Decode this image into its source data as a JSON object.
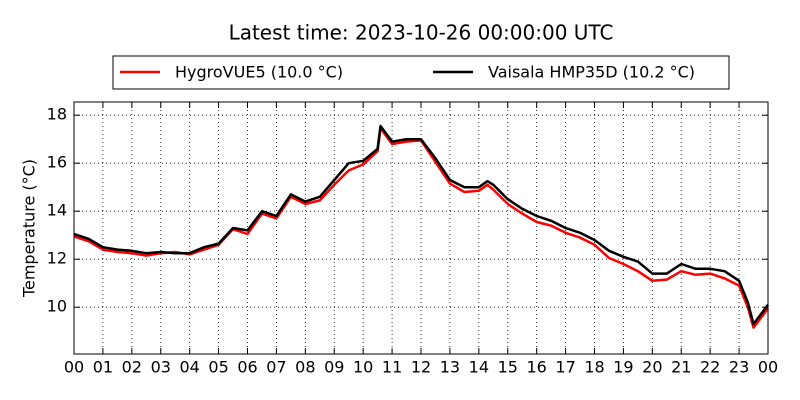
{
  "chart_data": {
    "type": "line",
    "title": "Latest time: 2023-10-26 00:00:00 UTC",
    "y_label": "Temperature (°C)",
    "x": [
      0,
      0.5,
      1,
      1.5,
      2,
      2.5,
      3,
      3.5,
      4,
      4.5,
      5,
      5.5,
      6,
      6.5,
      7,
      7.5,
      8,
      8.5,
      9,
      9.5,
      10,
      10.5,
      10.6,
      11,
      11.5,
      12,
      12.5,
      13,
      13.5,
      14,
      14.3,
      14.5,
      15,
      15.5,
      16,
      16.5,
      17,
      17.5,
      18,
      18.5,
      19,
      19.5,
      20,
      20.5,
      21,
      21.5,
      22,
      22.5,
      23,
      23.3,
      23.5,
      24
    ],
    "series": [
      {
        "name": "HygroVUE5 (10.0 °C)",
        "color": "#ff0000",
        "values": [
          12.95,
          12.75,
          12.4,
          12.3,
          12.25,
          12.15,
          12.25,
          12.3,
          12.2,
          12.4,
          12.6,
          13.25,
          13.05,
          13.9,
          13.7,
          14.6,
          14.3,
          14.45,
          15.1,
          15.7,
          15.95,
          16.5,
          17.45,
          16.8,
          16.9,
          16.95,
          16.05,
          15.15,
          14.8,
          14.85,
          15.1,
          14.9,
          14.3,
          13.9,
          13.55,
          13.4,
          13.1,
          12.9,
          12.6,
          12.05,
          11.8,
          11.5,
          11.1,
          11.15,
          11.5,
          11.35,
          11.4,
          11.2,
          10.9,
          10.0,
          9.15,
          9.95
        ]
      },
      {
        "name": "Vaisala HMP35D (10.2 °C)",
        "color": "#000000",
        "values": [
          13.05,
          12.85,
          12.5,
          12.4,
          12.35,
          12.25,
          12.3,
          12.25,
          12.25,
          12.5,
          12.65,
          13.3,
          13.2,
          14.0,
          13.8,
          14.7,
          14.4,
          14.6,
          15.3,
          16.0,
          16.1,
          16.6,
          17.55,
          16.9,
          17.0,
          17.0,
          16.2,
          15.3,
          15.0,
          15.0,
          15.25,
          15.1,
          14.5,
          14.1,
          13.8,
          13.6,
          13.3,
          13.1,
          12.8,
          12.35,
          12.1,
          11.9,
          11.4,
          11.4,
          11.8,
          11.6,
          11.6,
          11.5,
          11.1,
          10.2,
          9.3,
          10.1
        ]
      }
    ],
    "xlim": [
      0,
      24
    ],
    "xticks": [
      {
        "value": 0,
        "label": "00"
      },
      {
        "value": 1,
        "label": "01"
      },
      {
        "value": 2,
        "label": "02"
      },
      {
        "value": 3,
        "label": "03"
      },
      {
        "value": 4,
        "label": "04"
      },
      {
        "value": 5,
        "label": "05"
      },
      {
        "value": 6,
        "label": "06"
      },
      {
        "value": 7,
        "label": "07"
      },
      {
        "value": 8,
        "label": "08"
      },
      {
        "value": 9,
        "label": "09"
      },
      {
        "value": 10,
        "label": "10"
      },
      {
        "value": 11,
        "label": "11"
      },
      {
        "value": 12,
        "label": "12"
      },
      {
        "value": 13,
        "label": "13"
      },
      {
        "value": 14,
        "label": "14"
      },
      {
        "value": 15,
        "label": "15"
      },
      {
        "value": 16,
        "label": "16"
      },
      {
        "value": 17,
        "label": "17"
      },
      {
        "value": 18,
        "label": "18"
      },
      {
        "value": 19,
        "label": "19"
      },
      {
        "value": 20,
        "label": "20"
      },
      {
        "value": 21,
        "label": "21"
      },
      {
        "value": 22,
        "label": "22"
      },
      {
        "value": 23,
        "label": "23"
      },
      {
        "value": 24,
        "label": "00"
      }
    ],
    "ylim": [
      8.05,
      18.55
    ],
    "yticks": [
      10,
      12,
      14,
      16,
      18
    ],
    "grid": true
  }
}
